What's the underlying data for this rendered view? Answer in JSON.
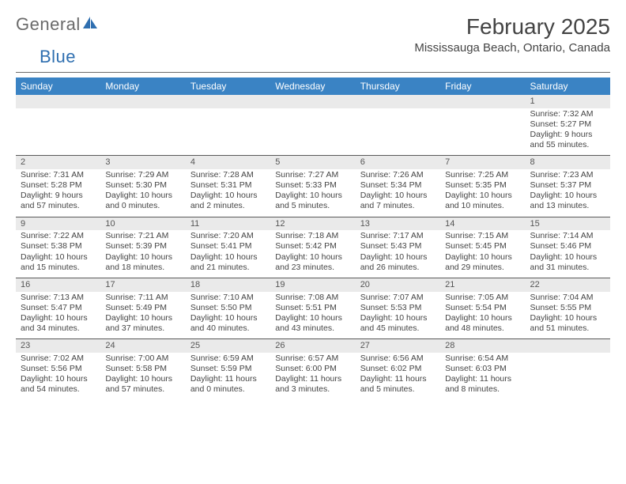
{
  "logo": {
    "word1": "General",
    "word2": "Blue"
  },
  "title": "February 2025",
  "location": "Mississauga Beach, Ontario, Canada",
  "colors": {
    "header_bg": "#3a83c4",
    "header_text": "#ffffff",
    "daynum_bg": "#eaeaea",
    "rule": "#5a5a5a",
    "logo_gray": "#6a6a6a",
    "logo_blue": "#2f6fb0"
  },
  "weekdays": [
    "Sunday",
    "Monday",
    "Tuesday",
    "Wednesday",
    "Thursday",
    "Friday",
    "Saturday"
  ],
  "weeks": [
    [
      null,
      null,
      null,
      null,
      null,
      null,
      {
        "n": "1",
        "sr": "Sunrise: 7:32 AM",
        "ss": "Sunset: 5:27 PM",
        "d1": "Daylight: 9 hours",
        "d2": "and 55 minutes."
      }
    ],
    [
      {
        "n": "2",
        "sr": "Sunrise: 7:31 AM",
        "ss": "Sunset: 5:28 PM",
        "d1": "Daylight: 9 hours",
        "d2": "and 57 minutes."
      },
      {
        "n": "3",
        "sr": "Sunrise: 7:29 AM",
        "ss": "Sunset: 5:30 PM",
        "d1": "Daylight: 10 hours",
        "d2": "and 0 minutes."
      },
      {
        "n": "4",
        "sr": "Sunrise: 7:28 AM",
        "ss": "Sunset: 5:31 PM",
        "d1": "Daylight: 10 hours",
        "d2": "and 2 minutes."
      },
      {
        "n": "5",
        "sr": "Sunrise: 7:27 AM",
        "ss": "Sunset: 5:33 PM",
        "d1": "Daylight: 10 hours",
        "d2": "and 5 minutes."
      },
      {
        "n": "6",
        "sr": "Sunrise: 7:26 AM",
        "ss": "Sunset: 5:34 PM",
        "d1": "Daylight: 10 hours",
        "d2": "and 7 minutes."
      },
      {
        "n": "7",
        "sr": "Sunrise: 7:25 AM",
        "ss": "Sunset: 5:35 PM",
        "d1": "Daylight: 10 hours",
        "d2": "and 10 minutes."
      },
      {
        "n": "8",
        "sr": "Sunrise: 7:23 AM",
        "ss": "Sunset: 5:37 PM",
        "d1": "Daylight: 10 hours",
        "d2": "and 13 minutes."
      }
    ],
    [
      {
        "n": "9",
        "sr": "Sunrise: 7:22 AM",
        "ss": "Sunset: 5:38 PM",
        "d1": "Daylight: 10 hours",
        "d2": "and 15 minutes."
      },
      {
        "n": "10",
        "sr": "Sunrise: 7:21 AM",
        "ss": "Sunset: 5:39 PM",
        "d1": "Daylight: 10 hours",
        "d2": "and 18 minutes."
      },
      {
        "n": "11",
        "sr": "Sunrise: 7:20 AM",
        "ss": "Sunset: 5:41 PM",
        "d1": "Daylight: 10 hours",
        "d2": "and 21 minutes."
      },
      {
        "n": "12",
        "sr": "Sunrise: 7:18 AM",
        "ss": "Sunset: 5:42 PM",
        "d1": "Daylight: 10 hours",
        "d2": "and 23 minutes."
      },
      {
        "n": "13",
        "sr": "Sunrise: 7:17 AM",
        "ss": "Sunset: 5:43 PM",
        "d1": "Daylight: 10 hours",
        "d2": "and 26 minutes."
      },
      {
        "n": "14",
        "sr": "Sunrise: 7:15 AM",
        "ss": "Sunset: 5:45 PM",
        "d1": "Daylight: 10 hours",
        "d2": "and 29 minutes."
      },
      {
        "n": "15",
        "sr": "Sunrise: 7:14 AM",
        "ss": "Sunset: 5:46 PM",
        "d1": "Daylight: 10 hours",
        "d2": "and 31 minutes."
      }
    ],
    [
      {
        "n": "16",
        "sr": "Sunrise: 7:13 AM",
        "ss": "Sunset: 5:47 PM",
        "d1": "Daylight: 10 hours",
        "d2": "and 34 minutes."
      },
      {
        "n": "17",
        "sr": "Sunrise: 7:11 AM",
        "ss": "Sunset: 5:49 PM",
        "d1": "Daylight: 10 hours",
        "d2": "and 37 minutes."
      },
      {
        "n": "18",
        "sr": "Sunrise: 7:10 AM",
        "ss": "Sunset: 5:50 PM",
        "d1": "Daylight: 10 hours",
        "d2": "and 40 minutes."
      },
      {
        "n": "19",
        "sr": "Sunrise: 7:08 AM",
        "ss": "Sunset: 5:51 PM",
        "d1": "Daylight: 10 hours",
        "d2": "and 43 minutes."
      },
      {
        "n": "20",
        "sr": "Sunrise: 7:07 AM",
        "ss": "Sunset: 5:53 PM",
        "d1": "Daylight: 10 hours",
        "d2": "and 45 minutes."
      },
      {
        "n": "21",
        "sr": "Sunrise: 7:05 AM",
        "ss": "Sunset: 5:54 PM",
        "d1": "Daylight: 10 hours",
        "d2": "and 48 minutes."
      },
      {
        "n": "22",
        "sr": "Sunrise: 7:04 AM",
        "ss": "Sunset: 5:55 PM",
        "d1": "Daylight: 10 hours",
        "d2": "and 51 minutes."
      }
    ],
    [
      {
        "n": "23",
        "sr": "Sunrise: 7:02 AM",
        "ss": "Sunset: 5:56 PM",
        "d1": "Daylight: 10 hours",
        "d2": "and 54 minutes."
      },
      {
        "n": "24",
        "sr": "Sunrise: 7:00 AM",
        "ss": "Sunset: 5:58 PM",
        "d1": "Daylight: 10 hours",
        "d2": "and 57 minutes."
      },
      {
        "n": "25",
        "sr": "Sunrise: 6:59 AM",
        "ss": "Sunset: 5:59 PM",
        "d1": "Daylight: 11 hours",
        "d2": "and 0 minutes."
      },
      {
        "n": "26",
        "sr": "Sunrise: 6:57 AM",
        "ss": "Sunset: 6:00 PM",
        "d1": "Daylight: 11 hours",
        "d2": "and 3 minutes."
      },
      {
        "n": "27",
        "sr": "Sunrise: 6:56 AM",
        "ss": "Sunset: 6:02 PM",
        "d1": "Daylight: 11 hours",
        "d2": "and 5 minutes."
      },
      {
        "n": "28",
        "sr": "Sunrise: 6:54 AM",
        "ss": "Sunset: 6:03 PM",
        "d1": "Daylight: 11 hours",
        "d2": "and 8 minutes."
      },
      null
    ]
  ]
}
